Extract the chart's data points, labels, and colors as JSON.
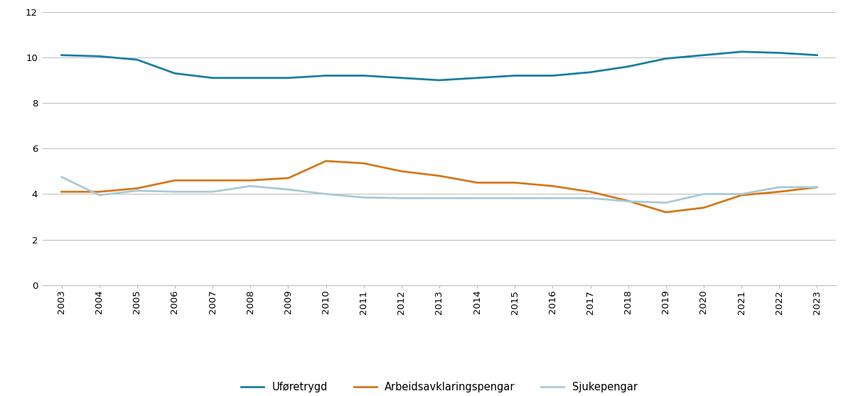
{
  "years": [
    2003,
    2004,
    2005,
    2006,
    2007,
    2008,
    2009,
    2010,
    2011,
    2012,
    2013,
    2014,
    2015,
    2016,
    2017,
    2018,
    2019,
    2020,
    2021,
    2022,
    2023
  ],
  "uforetrygd": [
    10.1,
    10.05,
    9.9,
    9.3,
    9.1,
    9.1,
    9.1,
    9.2,
    9.2,
    9.1,
    9.0,
    9.1,
    9.2,
    9.2,
    9.35,
    9.6,
    9.95,
    10.1,
    10.25,
    10.2,
    10.1
  ],
  "arbeidsavklaringspengar": [
    4.1,
    4.1,
    4.25,
    4.6,
    4.6,
    4.6,
    4.7,
    5.45,
    5.35,
    5.0,
    4.8,
    4.5,
    4.5,
    4.35,
    4.1,
    3.7,
    3.2,
    3.4,
    3.95,
    4.1,
    4.3
  ],
  "sjukepengar": [
    4.75,
    3.95,
    4.15,
    4.1,
    4.1,
    4.35,
    4.2,
    4.0,
    3.85,
    3.82,
    3.82,
    3.82,
    3.82,
    3.82,
    3.82,
    3.68,
    3.62,
    4.0,
    4.0,
    4.3,
    4.3
  ],
  "uforetrygd_color": "#1a7ea0",
  "arbeidsavklaringspengar_color": "#d4781a",
  "sjukepengar_color": "#a8cad8",
  "line_width": 2.0,
  "ylim": [
    0,
    12
  ],
  "yticks": [
    0,
    2,
    4,
    6,
    8,
    10,
    12
  ],
  "legend_labels": [
    "Uføretrygd",
    "Arbeidsavklaringspengar",
    "Sjukepengar"
  ],
  "background_color": "#ffffff",
  "grid_color": "#bbbbbb",
  "tick_fontsize": 9.5,
  "legend_fontsize": 10.5
}
